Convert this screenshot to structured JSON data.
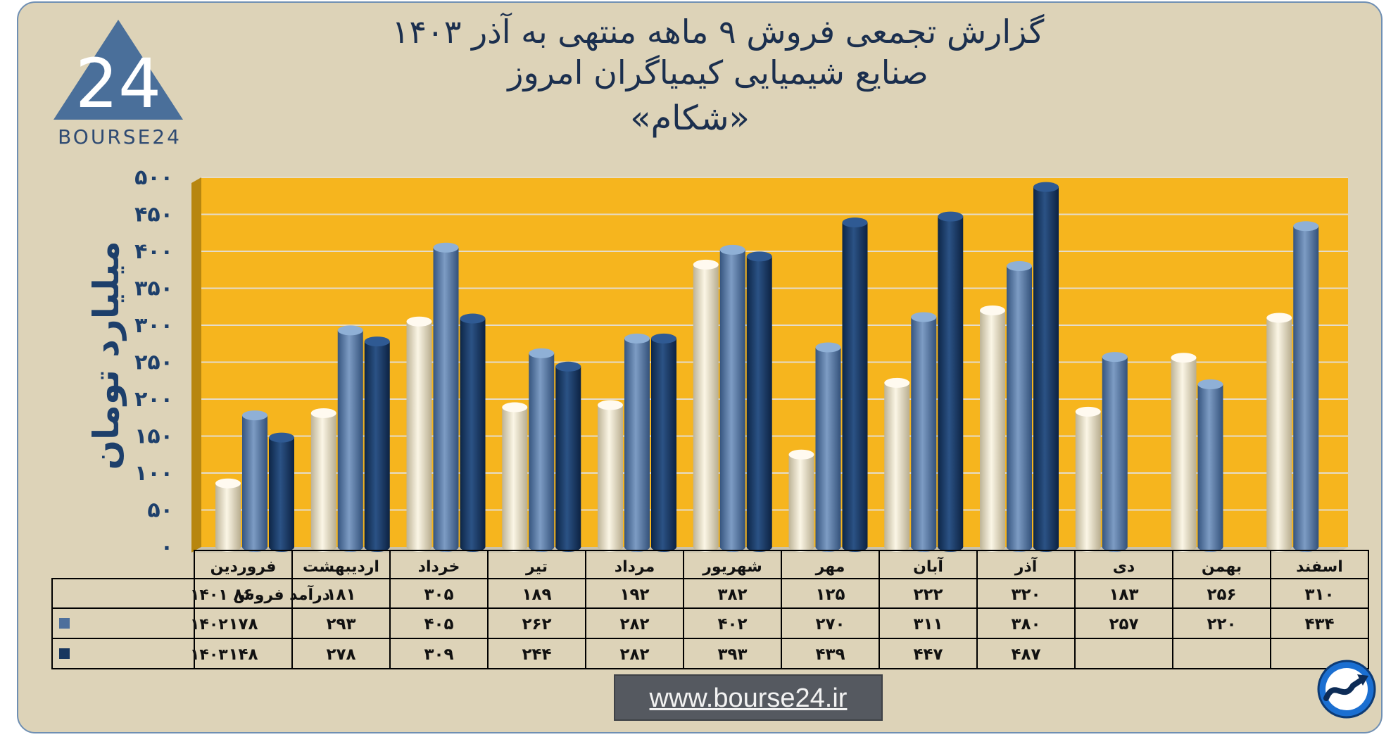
{
  "header": {
    "title_line1": "گزارش تجمعی فروش ۹ ماهه منتهی به آذر ۱۴۰۳",
    "title_line2": "صنایع شیمیایی کیمیاگران امروز",
    "title_line3": "«شکام»",
    "logo_text": "BOURSE24",
    "logo_mark": "24"
  },
  "footer": {
    "url": "www.bourse24.ir"
  },
  "colors": {
    "plot_bg": "#f6b51e",
    "series_1401": "#e9e0c4",
    "series_1402": "#4d6f9c",
    "series_1403": "#17365f",
    "card_bg": "#ddd3b8",
    "title": "#1b2f4e"
  },
  "chart_data": {
    "type": "bar",
    "ylabel": "میلیارد تومان",
    "ylim": [
      0,
      500
    ],
    "yticks": [
      0,
      50,
      100,
      150,
      200,
      250,
      300,
      350,
      400,
      450,
      500
    ],
    "ytick_labels": [
      "۰",
      "۵۰",
      "۱۰۰",
      "۱۵۰",
      "۲۰۰",
      "۲۵۰",
      "۳۰۰",
      "۳۵۰",
      "۴۰۰",
      "۴۵۰",
      "۵۰۰"
    ],
    "categories": [
      "فروردین",
      "اردیبهشت",
      "خرداد",
      "تیر",
      "مرداد",
      "شهریور",
      "مهر",
      "آبان",
      "آذر",
      "دی",
      "بهمن",
      "اسفند"
    ],
    "series": [
      {
        "name": "درآمد فروش ۱۴۰۱",
        "values": [
          86,
          181,
          305,
          189,
          192,
          382,
          125,
          222,
          320,
          183,
          256,
          310
        ],
        "labels": [
          "۸۶",
          "۱۸۱",
          "۳۰۵",
          "۱۸۹",
          "۱۹۲",
          "۳۸۲",
          "۱۲۵",
          "۲۲۲",
          "۳۲۰",
          "۱۸۳",
          "۲۵۶",
          "۳۱۰"
        ]
      },
      {
        "name": "۱۴۰۲",
        "values": [
          178,
          293,
          405,
          262,
          282,
          402,
          270,
          311,
          380,
          257,
          220,
          434
        ],
        "labels": [
          "۱۷۸",
          "۲۹۳",
          "۴۰۵",
          "۲۶۲",
          "۲۸۲",
          "۴۰۲",
          "۲۷۰",
          "۳۱۱",
          "۳۸۰",
          "۲۵۷",
          "۲۲۰",
          "۴۳۴"
        ]
      },
      {
        "name": "۱۴۰۳",
        "values": [
          148,
          278,
          309,
          244,
          282,
          393,
          439,
          447,
          487,
          null,
          null,
          null
        ],
        "labels": [
          "۱۴۸",
          "۲۷۸",
          "۳۰۹",
          "۲۴۴",
          "۲۸۲",
          "۳۹۳",
          "۴۳۹",
          "۴۴۷",
          "۴۸۷",
          "",
          "",
          ""
        ]
      }
    ],
    "grid": true,
    "legend": "data-table-below"
  }
}
